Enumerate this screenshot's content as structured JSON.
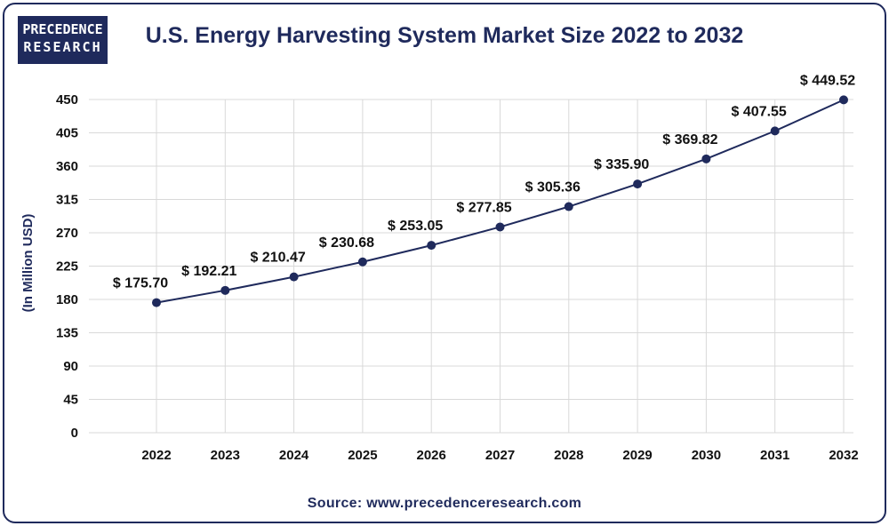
{
  "logo": {
    "line1": "PRECEDENCE",
    "line2": "RESEARCH"
  },
  "source": "Source: www.precedenceresearch.com",
  "colors": {
    "brand": "#1f2a5c",
    "series": "#1f2a5c",
    "grid": "#d9d9d9"
  },
  "chart_data": {
    "type": "line",
    "title": "U.S. Energy Harvesting System Market Size 2022 to 2032",
    "xlabel": "",
    "ylabel": "(In Million USD)",
    "ylim": [
      0,
      450
    ],
    "yticks": [
      0,
      45,
      90,
      135,
      180,
      225,
      270,
      315,
      360,
      405,
      450
    ],
    "categories": [
      "2022",
      "2023",
      "2024",
      "2025",
      "2026",
      "2027",
      "2028",
      "2029",
      "2030",
      "2031",
      "2032"
    ],
    "series": [
      {
        "name": "U.S. Energy Harvesting System Market Size",
        "values": [
          175.7,
          192.21,
          210.47,
          230.68,
          253.05,
          277.85,
          305.36,
          335.9,
          369.82,
          407.55,
          449.52
        ],
        "labels": [
          "$ 175.70",
          "$ 192.21",
          "$ 210.47",
          "$ 230.68",
          "$ 253.05",
          "$ 277.85",
          "$ 305.36",
          "$ 335.90",
          "$ 369.82",
          "$ 407.55",
          "$ 449.52"
        ]
      }
    ],
    "grid": true,
    "legend": "none"
  }
}
